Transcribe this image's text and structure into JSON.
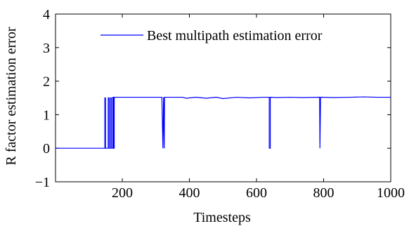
{
  "chart_data": {
    "type": "line",
    "xlabel": "Timesteps",
    "ylabel": "R factor estimation error",
    "xlim": [
      1,
      1000
    ],
    "ylim": [
      -1,
      4
    ],
    "xticks": [
      200,
      400,
      600,
      800,
      1000
    ],
    "yticks": [
      -1,
      0,
      1,
      2,
      3,
      4
    ],
    "grid": false,
    "legend_position": "top-right",
    "series": [
      {
        "name": "Best multipath estimation error",
        "color": "#0000ff",
        "points": [
          [
            1,
            0
          ],
          [
            148,
            0
          ],
          [
            148,
            1.5
          ],
          [
            150,
            1.5
          ],
          [
            150,
            0
          ],
          [
            158,
            0
          ],
          [
            158,
            1.5
          ],
          [
            161,
            1.5
          ],
          [
            161,
            0
          ],
          [
            165,
            0
          ],
          [
            165,
            1.5
          ],
          [
            168,
            1.5
          ],
          [
            168,
            0
          ],
          [
            172,
            0
          ],
          [
            172,
            1.52
          ],
          [
            174,
            1.52
          ],
          [
            174,
            0
          ],
          [
            176,
            0
          ],
          [
            176,
            1.52
          ],
          [
            318,
            1.52
          ],
          [
            321,
            0
          ],
          [
            323,
            1.52
          ],
          [
            325,
            0
          ],
          [
            326,
            1.52
          ],
          [
            380,
            1.52
          ],
          [
            390,
            1.49
          ],
          [
            420,
            1.52
          ],
          [
            450,
            1.49
          ],
          [
            480,
            1.52
          ],
          [
            500,
            1.48
          ],
          [
            540,
            1.52
          ],
          [
            580,
            1.5
          ],
          [
            620,
            1.52
          ],
          [
            638,
            1.52
          ],
          [
            638,
            0
          ],
          [
            641,
            0
          ],
          [
            641,
            1.52
          ],
          [
            660,
            1.51
          ],
          [
            700,
            1.52
          ],
          [
            740,
            1.51
          ],
          [
            788,
            1.52
          ],
          [
            789,
            0
          ],
          [
            791,
            1.52
          ],
          [
            830,
            1.51
          ],
          [
            880,
            1.52
          ],
          [
            920,
            1.53
          ],
          [
            960,
            1.52
          ],
          [
            1000,
            1.52
          ]
        ]
      }
    ]
  }
}
